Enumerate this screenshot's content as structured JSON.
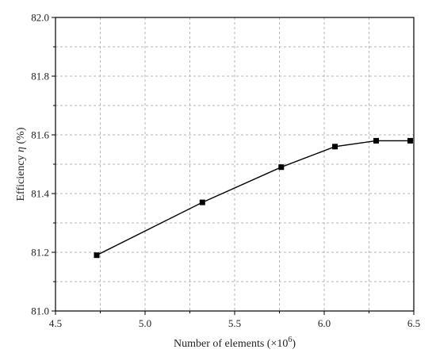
{
  "chart_data": {
    "type": "line",
    "title": "",
    "xlabel_prefix": "Number of elements (×10",
    "xlabel_exp": "6",
    "xlabel_suffix": ")",
    "ylabel_prefix": "Efficiency ",
    "ylabel_symbol": "η",
    "ylabel_suffix": " (%)",
    "xlim": [
      4.5,
      6.5
    ],
    "ylim": [
      81.0,
      82.0
    ],
    "x_ticks": [
      4.5,
      5.0,
      5.5,
      6.0,
      6.5
    ],
    "x_tick_labels": [
      "4.5",
      "5.0",
      "5.5",
      "6.0",
      "6.5"
    ],
    "y_ticks": [
      81.0,
      81.2,
      81.4,
      81.6,
      81.8,
      82.0
    ],
    "y_tick_labels": [
      "81.0",
      "81.2",
      "81.4",
      "81.6",
      "81.8",
      "82.0"
    ],
    "x_minor_grid_step": 0.25,
    "y_minor_grid_step": 0.1,
    "grid": true,
    "legend": "none",
    "series": [
      {
        "marker": "square",
        "color": "#000000",
        "x": [
          4.73,
          5.32,
          5.76,
          6.06,
          6.29,
          6.48
        ],
        "y": [
          81.19,
          81.37,
          81.49,
          81.56,
          81.58,
          81.58
        ]
      }
    ]
  }
}
